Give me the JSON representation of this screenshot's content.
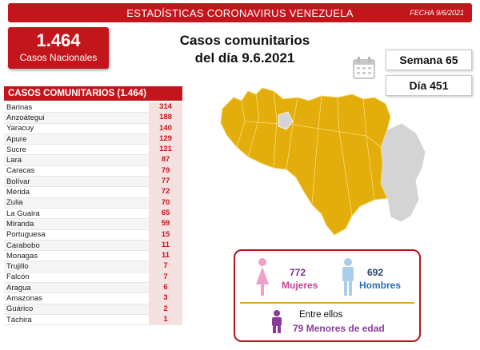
{
  "header": {
    "title": "ESTADÍSTICAS CORONAVIRUS VENEZUELA",
    "date": "FECHA 9/6/2021"
  },
  "national": {
    "value": "1.464",
    "label": "Casos Nacionales"
  },
  "main_title": {
    "line1": "Casos comunitarios",
    "line2": "del día 9.6.2021"
  },
  "week": "Semana 65",
  "day": "Día 451",
  "table": {
    "header": "CASOS COMUNITARIOS (1.464)",
    "rows": [
      {
        "name": "Barinas",
        "value": "314"
      },
      {
        "name": "Anzoátegui",
        "value": "188"
      },
      {
        "name": "Yaracuy",
        "value": "140"
      },
      {
        "name": "Apure",
        "value": "129"
      },
      {
        "name": "Sucre",
        "value": "121"
      },
      {
        "name": "Lara",
        "value": "87"
      },
      {
        "name": "Caracas",
        "value": "79"
      },
      {
        "name": "Bolívar",
        "value": "77"
      },
      {
        "name": "Mérida",
        "value": "72"
      },
      {
        "name": "Zulia",
        "value": "70"
      },
      {
        "name": "La Guaira",
        "value": "65"
      },
      {
        "name": "Miranda",
        "value": "59"
      },
      {
        "name": "Portuguesa",
        "value": "15"
      },
      {
        "name": "Carabobo",
        "value": "11"
      },
      {
        "name": "Monagas",
        "value": "11"
      },
      {
        "name": "Trujillo",
        "value": "7"
      },
      {
        "name": "Falcón",
        "value": "7"
      },
      {
        "name": "Aragua",
        "value": "6"
      },
      {
        "name": "Amazonas",
        "value": "3"
      },
      {
        "name": "Guárico",
        "value": "2"
      },
      {
        "name": "Táchira",
        "value": "1"
      }
    ]
  },
  "gender": {
    "women_value": "772",
    "women_label": "Mujeres",
    "men_value": "692",
    "men_label": "Hombres",
    "among_label": "Entre ellos",
    "minors_value": "79",
    "minors_label": "Menores de edad"
  },
  "colors": {
    "brand_red": "#c3161c",
    "map_yellow": "#e3ad0b",
    "map_gray": "#d4d4d4"
  }
}
